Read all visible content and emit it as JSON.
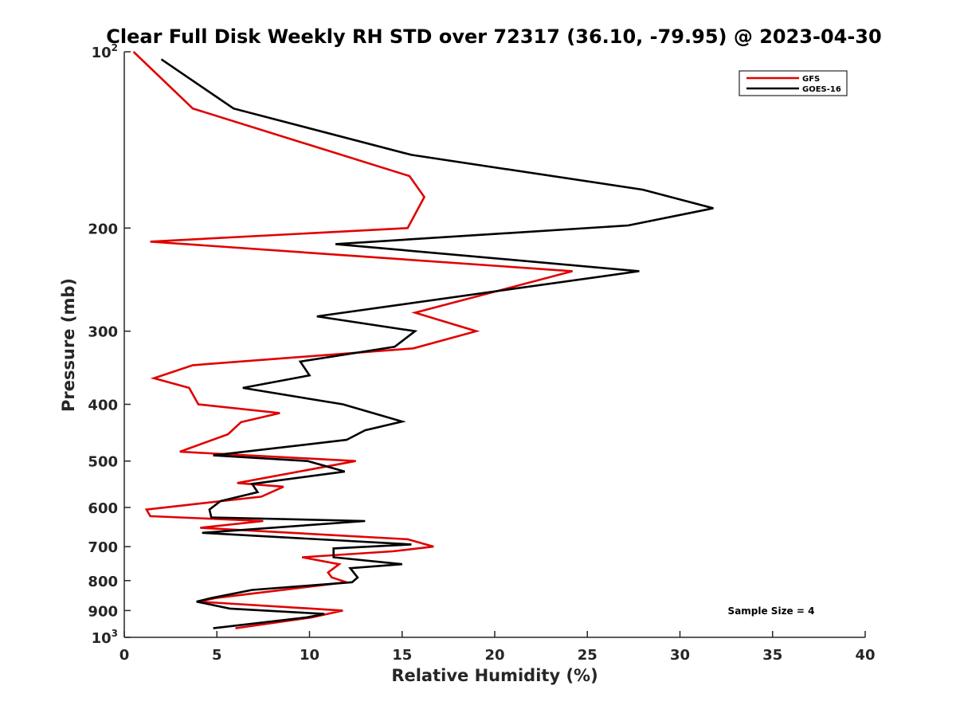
{
  "chart_data": {
    "type": "line",
    "title": "Clear Full Disk Weekly RH STD over 72317 (36.10, -79.95) @ 2023-04-30",
    "xlabel": "Relative Humidity (%)",
    "ylabel": "Pressure (mb)",
    "xlim": [
      0,
      40
    ],
    "ylim": [
      100,
      1000
    ],
    "y_scale": "log",
    "y_reversed": true,
    "grid": false,
    "legend_position": "top-right",
    "x_ticks": [
      "0",
      "5",
      "10",
      "15",
      "20",
      "25",
      "30",
      "35",
      "40"
    ],
    "y_ticks": [
      {
        "value": 100,
        "base": "10",
        "exp": "2"
      },
      {
        "value": 200,
        "label": "200"
      },
      {
        "value": 300,
        "label": "300"
      },
      {
        "value": 400,
        "label": "400"
      },
      {
        "value": 500,
        "label": "500"
      },
      {
        "value": 600,
        "label": "600"
      },
      {
        "value": 700,
        "label": "700"
      },
      {
        "value": 800,
        "label": "800"
      },
      {
        "value": 900,
        "label": "900"
      },
      {
        "value": 1000,
        "base": "10",
        "exp": "3"
      }
    ],
    "annotation": "Sample Size = 4",
    "series": [
      {
        "name": "GFS",
        "color": "#e00000",
        "points": [
          [
            0.5,
            100
          ],
          [
            3.7,
            125
          ],
          [
            15.4,
            163
          ],
          [
            16.2,
            177
          ],
          [
            15.3,
            200
          ],
          [
            1.4,
            211
          ],
          [
            24.2,
            237
          ],
          [
            15.7,
            279
          ],
          [
            19.0,
            300
          ],
          [
            15.6,
            321
          ],
          [
            3.7,
            343
          ],
          [
            1.6,
            361
          ],
          [
            3.5,
            375
          ],
          [
            4.0,
            400
          ],
          [
            8.4,
            414
          ],
          [
            6.3,
            429
          ],
          [
            5.6,
            450
          ],
          [
            3.0,
            482
          ],
          [
            12.5,
            500
          ],
          [
            6.1,
            545
          ],
          [
            8.6,
            553
          ],
          [
            7.4,
            575
          ],
          [
            1.2,
            605
          ],
          [
            1.4,
            621
          ],
          [
            7.5,
            633
          ],
          [
            4.1,
            650
          ],
          [
            15.3,
            680
          ],
          [
            16.7,
            700
          ],
          [
            14.5,
            713
          ],
          [
            9.6,
            730
          ],
          [
            11.6,
            750
          ],
          [
            11.0,
            775
          ],
          [
            11.2,
            790
          ],
          [
            12.0,
            805
          ],
          [
            5.0,
            856
          ],
          [
            4.0,
            869
          ],
          [
            11.8,
            900
          ],
          [
            10.1,
            925
          ],
          [
            6.0,
            965
          ]
        ]
      },
      {
        "name": "GOES-16",
        "color": "#000000",
        "points": [
          [
            2.0,
            103
          ],
          [
            5.9,
            125
          ],
          [
            15.5,
            150
          ],
          [
            28.0,
            172
          ],
          [
            31.8,
            185
          ],
          [
            27.2,
            198
          ],
          [
            11.4,
            213
          ],
          [
            27.8,
            237
          ],
          [
            10.4,
            283
          ],
          [
            15.7,
            300
          ],
          [
            14.6,
            319
          ],
          [
            9.5,
            338
          ],
          [
            10.0,
            357
          ],
          [
            6.4,
            375
          ],
          [
            11.8,
            400
          ],
          [
            15.0,
            428
          ],
          [
            13.0,
            443
          ],
          [
            12.0,
            460
          ],
          [
            4.8,
            489
          ],
          [
            9.9,
            500
          ],
          [
            11.9,
            521
          ],
          [
            6.9,
            547
          ],
          [
            7.2,
            565
          ],
          [
            5.2,
            585
          ],
          [
            4.6,
            605
          ],
          [
            4.7,
            624
          ],
          [
            13.0,
            633
          ],
          [
            4.2,
            663
          ],
          [
            15.5,
            694
          ],
          [
            11.3,
            705
          ],
          [
            11.3,
            730
          ],
          [
            15.0,
            750
          ],
          [
            12.2,
            762
          ],
          [
            12.6,
            790
          ],
          [
            12.3,
            805
          ],
          [
            6.9,
            830
          ],
          [
            4.7,
            857
          ],
          [
            3.9,
            869
          ],
          [
            5.7,
            893
          ],
          [
            10.8,
            912
          ],
          [
            9.8,
            925
          ],
          [
            4.8,
            965
          ]
        ]
      }
    ]
  }
}
